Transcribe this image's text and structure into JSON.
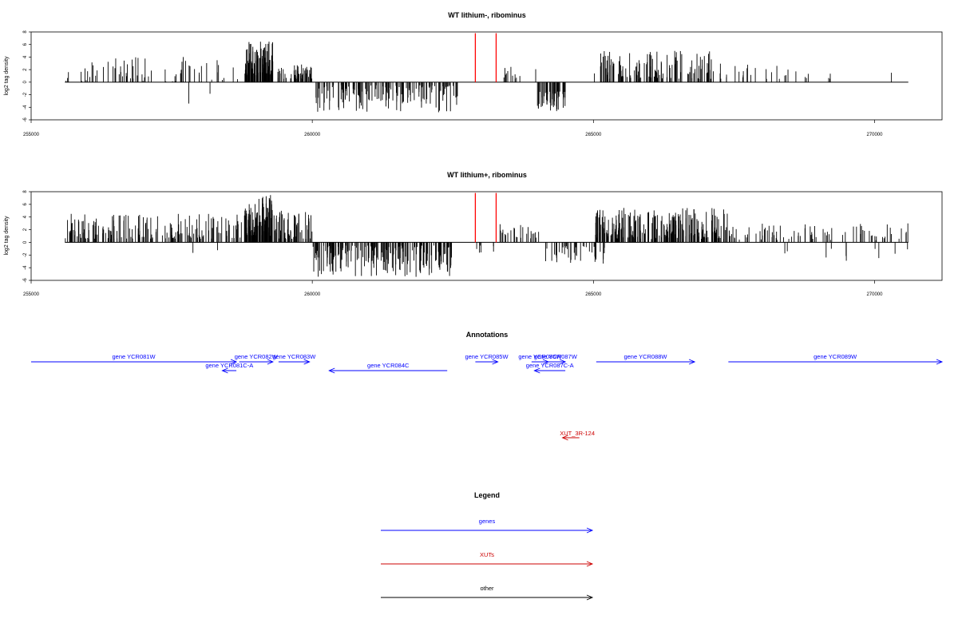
{
  "chart_data": [
    {
      "type": "bar",
      "title": "WT lithium-, ribominus",
      "xlabel": "",
      "ylabel": "log2 tag density",
      "xlim": [
        255000,
        271200
      ],
      "ylim": [
        -6,
        8
      ],
      "xticks": [
        "255000",
        "260000",
        "265000",
        "270000"
      ],
      "yticks": [
        "-6",
        "-4",
        "-2",
        "0",
        "2",
        "4",
        "6",
        "8"
      ],
      "series": [
        {
          "color": "#000000",
          "regions": [
            {
              "start": 255600,
              "end": 258700,
              "min": 0,
              "max": 4,
              "count": 70
            },
            {
              "start": 257300,
              "end": 258500,
              "min": -3.5,
              "max": -1.5,
              "count": 2
            },
            {
              "start": 258800,
              "end": 259300,
              "min": 1,
              "max": 6.5,
              "count": 90
            },
            {
              "start": 259300,
              "end": 260000,
              "min": 0.5,
              "max": 3,
              "count": 50
            },
            {
              "start": 260050,
              "end": 262600,
              "min": -4.8,
              "max": -0.5,
              "count": 150
            },
            {
              "start": 263400,
              "end": 264000,
              "min": 0.5,
              "max": 2.5,
              "count": 12
            },
            {
              "start": 264000,
              "end": 264500,
              "min": -5,
              "max": -1.5,
              "count": 50
            },
            {
              "start": 265000,
              "end": 267100,
              "min": 0.5,
              "max": 5,
              "count": 130
            },
            {
              "start": 267100,
              "end": 269400,
              "min": 0.5,
              "max": 3,
              "count": 30
            },
            {
              "start": 270300,
              "end": 270300,
              "min": 1.5,
              "max": 1.5,
              "count": 1
            }
          ]
        },
        {
          "color": "#ff0000",
          "positions": [
            262900,
            263270
          ],
          "value": 7.8
        }
      ]
    },
    {
      "type": "bar",
      "title": "WT lithium+, ribominus",
      "xlabel": "",
      "ylabel": "log2 tag density",
      "xlim": [
        255000,
        271200
      ],
      "ylim": [
        -6,
        8
      ],
      "xticks": [
        "255000",
        "260000",
        "265000",
        "270000"
      ],
      "yticks": [
        "-6",
        "-4",
        "-2",
        "0",
        "2",
        "4",
        "6",
        "8"
      ],
      "series": [
        {
          "color": "#000000",
          "regions": [
            {
              "start": 255600,
              "end": 258800,
              "min": 0.5,
              "max": 4.5,
              "count": 170
            },
            {
              "start": 257300,
              "end": 258500,
              "min": -2,
              "max": -1,
              "count": 2
            },
            {
              "start": 258800,
              "end": 259300,
              "min": 1,
              "max": 7.5,
              "count": 110
            },
            {
              "start": 259300,
              "end": 260000,
              "min": 0.5,
              "max": 5,
              "count": 60
            },
            {
              "start": 260000,
              "end": 262500,
              "min": -5.5,
              "max": -0.5,
              "count": 200
            },
            {
              "start": 262800,
              "end": 263300,
              "min": -2,
              "max": -0.3,
              "count": 6
            },
            {
              "start": 263300,
              "end": 264100,
              "min": 0.5,
              "max": 3,
              "count": 25
            },
            {
              "start": 264100,
              "end": 265200,
              "min": -3.5,
              "max": -0.5,
              "count": 40
            },
            {
              "start": 265000,
              "end": 267400,
              "min": 0.5,
              "max": 5.5,
              "count": 230
            },
            {
              "start": 267400,
              "end": 270600,
              "min": 0.3,
              "max": 3,
              "count": 80
            },
            {
              "start": 268400,
              "end": 270600,
              "min": -3,
              "max": -1,
              "count": 10
            }
          ]
        },
        {
          "color": "#ff0000",
          "positions": [
            262900,
            263270
          ],
          "value": 7.8
        }
      ]
    }
  ],
  "annotations": {
    "title": "Annotations",
    "genes": [
      {
        "label": "gene YCR081W",
        "start": 255000,
        "end": 258650,
        "strand": "+",
        "row": 1
      },
      {
        "label": "gene YCR081C-A",
        "start": 258400,
        "end": 258650,
        "strand": "-",
        "row": 2
      },
      {
        "label": "gene YCR082W",
        "start": 258700,
        "end": 259300,
        "strand": "+",
        "row": 1
      },
      {
        "label": "gene YCR083W",
        "start": 259400,
        "end": 259950,
        "strand": "+",
        "row": 1
      },
      {
        "label": "gene YCR084C",
        "start": 260300,
        "end": 262400,
        "strand": "-",
        "row": 2
      },
      {
        "label": "gene YCR085W",
        "start": 262900,
        "end": 263300,
        "strand": "+",
        "row": 1
      },
      {
        "label": "gene YCR086W",
        "start": 263900,
        "end": 264200,
        "strand": "+",
        "row": 1
      },
      {
        "label": "gene YCR087W",
        "start": 264150,
        "end": 264500,
        "strand": "+",
        "row": 1
      },
      {
        "label": "gene YCR087C-A",
        "start": 263950,
        "end": 264500,
        "strand": "-",
        "row": 2
      },
      {
        "label": "gene YCR088W",
        "start": 265050,
        "end": 266800,
        "strand": "+",
        "row": 1
      },
      {
        "label": "gene YCR089W",
        "start": 267400,
        "end": 271200,
        "strand": "+",
        "row": 1
      }
    ],
    "xuts": [
      {
        "label": "XUT_3R-124",
        "start": 264450,
        "end": 264750,
        "strand": "-"
      }
    ]
  },
  "legend": {
    "title": "Legend",
    "items": [
      {
        "label": "genes",
        "color": "#0000ff"
      },
      {
        "label": "XUTs",
        "color": "#cc0000"
      },
      {
        "label": "other",
        "color": "#000000"
      }
    ]
  }
}
